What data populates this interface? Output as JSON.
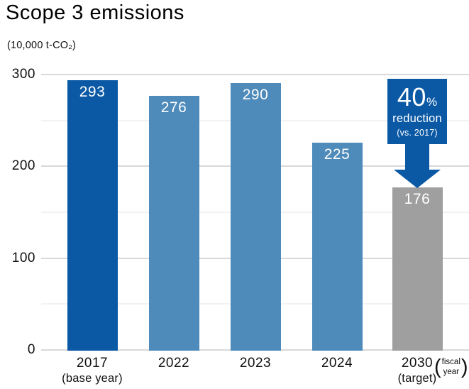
{
  "title": "Scope 3 emissions",
  "unit_label": "(10,000 t-CO₂)",
  "fiscal_suffix": {
    "line1": "fiscal",
    "line2": "year",
    "open_paren": "(",
    "close_paren": ")"
  },
  "chart_data": {
    "type": "bar",
    "title": "Scope 3 emissions",
    "ylabel": "(10,000 t-CO₂)",
    "categories": [
      "2017",
      "2022",
      "2023",
      "2024",
      "2030"
    ],
    "category_sublabels": [
      "(base year)",
      "",
      "",
      "",
      "(target)"
    ],
    "values": [
      293,
      276,
      290,
      225,
      176
    ],
    "bar_colors": [
      "#0b59a5",
      "#4e8aba",
      "#4e8aba",
      "#4e8aba",
      "#9f9f9f"
    ],
    "ylim": [
      0,
      300
    ],
    "yticks_major": [
      0,
      100,
      200,
      300
    ],
    "yticks_minor": [
      50,
      150,
      250
    ],
    "grid": true,
    "legend": false,
    "xlabel_suffix": "(fiscal year)",
    "annotation": {
      "value": "40",
      "percent_sign": "%",
      "line2": "reduction",
      "line3": "(vs. 2017)",
      "target_category": "2030"
    },
    "colors": {
      "accent_blue": "#0b59a5",
      "medium_blue": "#4e8aba",
      "target_gray": "#9f9f9f",
      "grid_major": "#d9d9d9",
      "grid_minor": "#f2f2f2",
      "text": "#111111",
      "bar_value_text": "#ffffff"
    }
  }
}
